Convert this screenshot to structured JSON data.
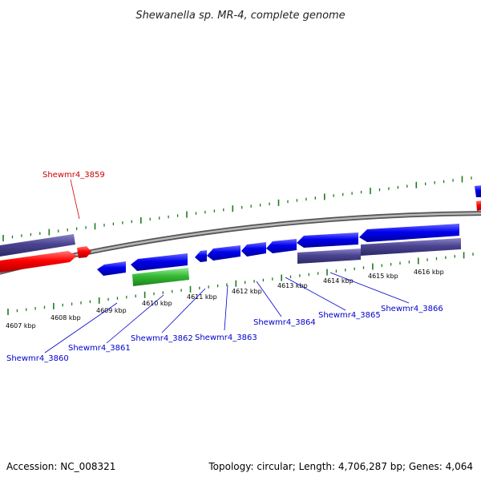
{
  "title": "Shewanella sp. MR-4, complete genome",
  "footer": {
    "accession": "Accession: NC_008321",
    "summary": "Topology: circular; Length: 4,706,287 bp; Genes: 4,064"
  },
  "colors": {
    "backbone": "#8a8a8a",
    "tick": "#1e7a1e",
    "forward_gene": "#ff0000",
    "reverse_gene": "#0000ee",
    "rna_gene": "#33bb33",
    "feature_block": "#4a4490",
    "label_red": "#cc0000",
    "label_blue": "#0000cc"
  },
  "scale": {
    "ticks": [
      {
        "label": "4607 kbp"
      },
      {
        "label": "4608 kbp"
      },
      {
        "label": "4609 kbp"
      },
      {
        "label": "4610 kbp"
      },
      {
        "label": "4611 kbp"
      },
      {
        "label": "4612 kbp"
      },
      {
        "label": "4613 kbp"
      },
      {
        "label": "4614 kbp"
      },
      {
        "label": "4615 kbp"
      },
      {
        "label": "4616 kbp"
      }
    ]
  },
  "genes": [
    {
      "name": "Shewmr4_3859",
      "strand": "forward"
    },
    {
      "name": "Shewmr4_3860",
      "strand": "reverse"
    },
    {
      "name": "Shewmr4_3861",
      "strand": "reverse"
    },
    {
      "name": "Shewmr4_3862",
      "strand": "reverse"
    },
    {
      "name": "Shewmr4_3863",
      "strand": "reverse"
    },
    {
      "name": "Shewmr4_3864",
      "strand": "reverse"
    },
    {
      "name": "Shewmr4_3865",
      "strand": "reverse"
    },
    {
      "name": "Shewmr4_3866",
      "strand": "reverse"
    }
  ]
}
